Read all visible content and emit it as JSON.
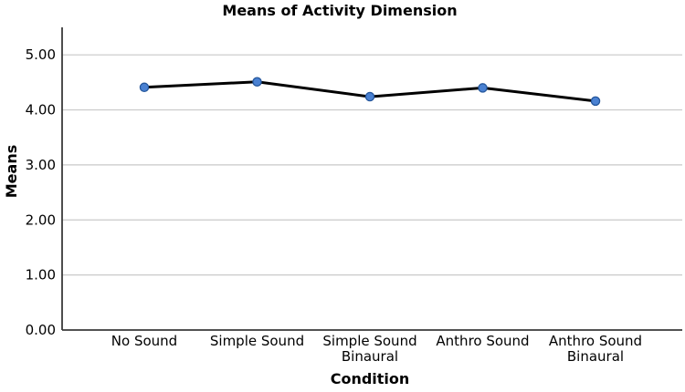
{
  "chart_data": {
    "type": "line",
    "title": "Means of Activity Dimension",
    "xlabel": "Condition",
    "ylabel": "Means",
    "categories": [
      "No Sound",
      "Simple Sound",
      "Simple Sound\nBinaural",
      "Anthro Sound",
      "Anthro Sound\nBinaural"
    ],
    "values": [
      4.41,
      4.51,
      4.24,
      4.4,
      4.16
    ],
    "series": [
      {
        "name": "Means of Activity Dimension",
        "values": [
          4.41,
          4.51,
          4.24,
          4.4,
          4.16
        ]
      }
    ],
    "yticks": [
      0.0,
      1.0,
      2.0,
      3.0,
      4.0,
      5.0
    ],
    "ytick_labels": [
      "0.00",
      "1.00",
      "2.00",
      "3.00",
      "4.00",
      "5.00"
    ],
    "ylim": [
      0,
      5.5
    ],
    "grid": "horizontal",
    "legend": "none",
    "colors": {
      "line": "#000000",
      "marker_fill": "#4a81d2",
      "marker_stroke": "#24569b",
      "grid": "#c9c9c9",
      "axis": "#3a3a3a",
      "text": "#000000",
      "background": "#ffffff"
    }
  }
}
